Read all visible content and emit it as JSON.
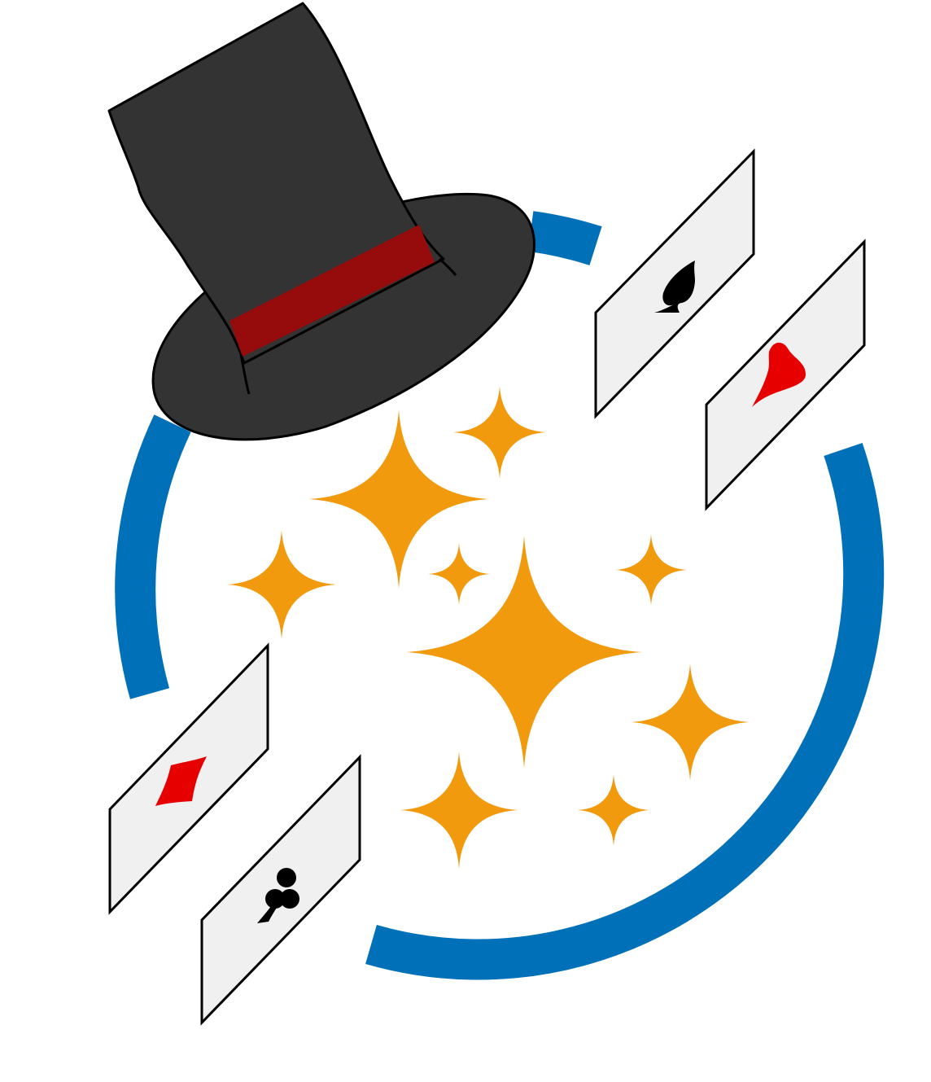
{
  "title": "",
  "colors": {
    "background": "#ffffff",
    "ring": "#0070b8",
    "hat": "#333333",
    "hat_band": "#960b0b",
    "card_face": "#f0f0f0",
    "card_outline": "#000000",
    "sparkle": "#f29a0e",
    "suit_red": "#e60000",
    "suit_black": "#000000"
  },
  "icons": {
    "hat": "top-hat-icon",
    "ring": "ring-arc",
    "sparkles": "sparkle-icon",
    "cards": [
      "spade-card",
      "heart-card",
      "diamond-card",
      "club-card"
    ],
    "suits": [
      "spade-icon",
      "heart-icon",
      "diamond-icon",
      "club-icon"
    ]
  }
}
